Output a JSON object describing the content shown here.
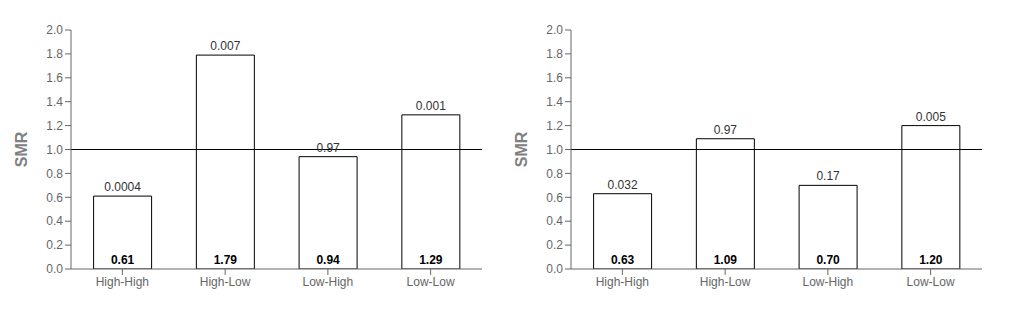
{
  "chart_data": [
    {
      "type": "bar",
      "categories": [
        "High-High",
        "High-Low",
        "Low-High",
        "Low-Low"
      ],
      "values": [
        0.61,
        1.79,
        0.94,
        1.29
      ],
      "value_labels": [
        "0.61",
        "1.79",
        "0.94",
        "1.29"
      ],
      "annotations": [
        "0.0004",
        "0.007",
        "0.97",
        "0.001"
      ],
      "reference_line": 1.0,
      "ylabel": "SMR",
      "ylim": [
        0,
        2
      ],
      "yticks": [
        {
          "value": 0,
          "label": "0.0"
        },
        0.2,
        0.4,
        0.6,
        0.8,
        {
          "value": 1.0,
          "label": "1.0"
        },
        1.2,
        1.4,
        1.6,
        1.8,
        {
          "value": 2.0,
          "label": "2.0"
        }
      ],
      "color": "#ffffff",
      "data_labels": true,
      "grid": false
    },
    {
      "type": "bar",
      "categories": [
        "High-High",
        "High-Low",
        "Low-High",
        "Low-Low"
      ],
      "values": [
        0.63,
        1.09,
        0.7,
        1.2
      ],
      "value_labels": [
        "0.63",
        "1.09",
        "0.70",
        "1.20"
      ],
      "annotations": [
        "0.032",
        "0.97",
        "0.17",
        "0.005"
      ],
      "reference_line": 1.0,
      "ylabel": "SMR",
      "ylim": [
        0,
        2
      ],
      "yticks": [
        {
          "value": 0,
          "label": "0.0"
        },
        0.2,
        0.4,
        0.6,
        0.8,
        {
          "value": 1.0,
          "label": "1.0"
        },
        1.2,
        1.4,
        1.6,
        1.8,
        {
          "value": 2.0,
          "label": "2.0"
        }
      ],
      "color": "#ffffff",
      "data_labels": true,
      "grid": false
    }
  ]
}
